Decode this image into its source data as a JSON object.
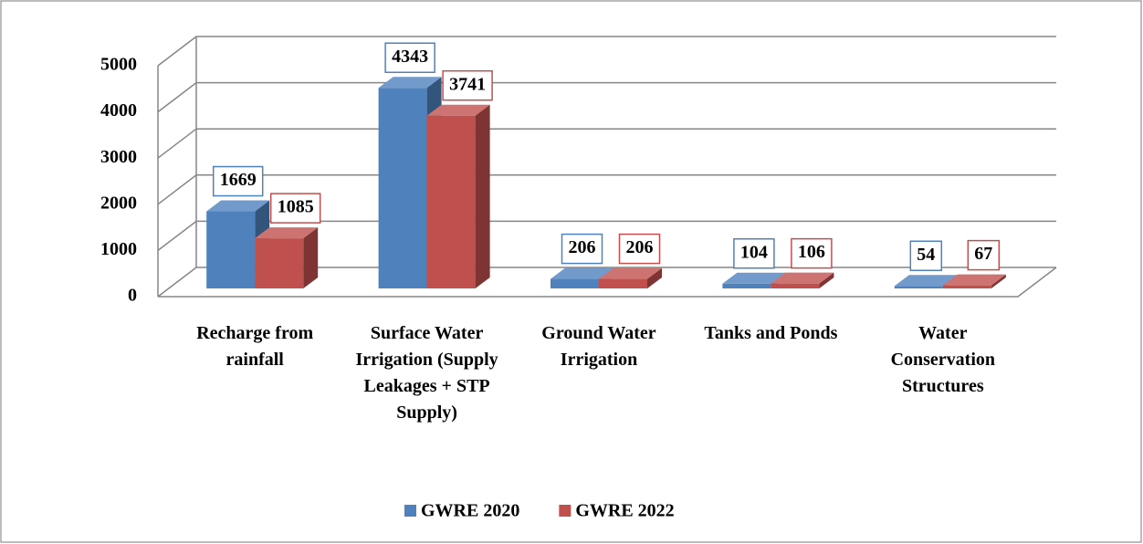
{
  "chart_data": {
    "type": "bar3d",
    "categories": [
      "Recharge from rainfall",
      "Surface Water Irrigation (Supply Leakages + STP Supply)",
      "Ground Water Irrigation",
      "Tanks and Ponds",
      "Water Conservation Structures"
    ],
    "series": [
      {
        "name": "GWRE 2020",
        "color": "#4f81bd",
        "values": [
          1669,
          4343,
          206,
          104,
          54
        ]
      },
      {
        "name": "GWRE 2022",
        "color": "#c0504d",
        "values": [
          1085,
          3741,
          206,
          106,
          67
        ]
      }
    ],
    "ylim": [
      0,
      5000
    ],
    "yticks": [
      0,
      1000,
      2000,
      3000,
      4000,
      5000
    ],
    "grid": true,
    "legend": "bottom"
  }
}
